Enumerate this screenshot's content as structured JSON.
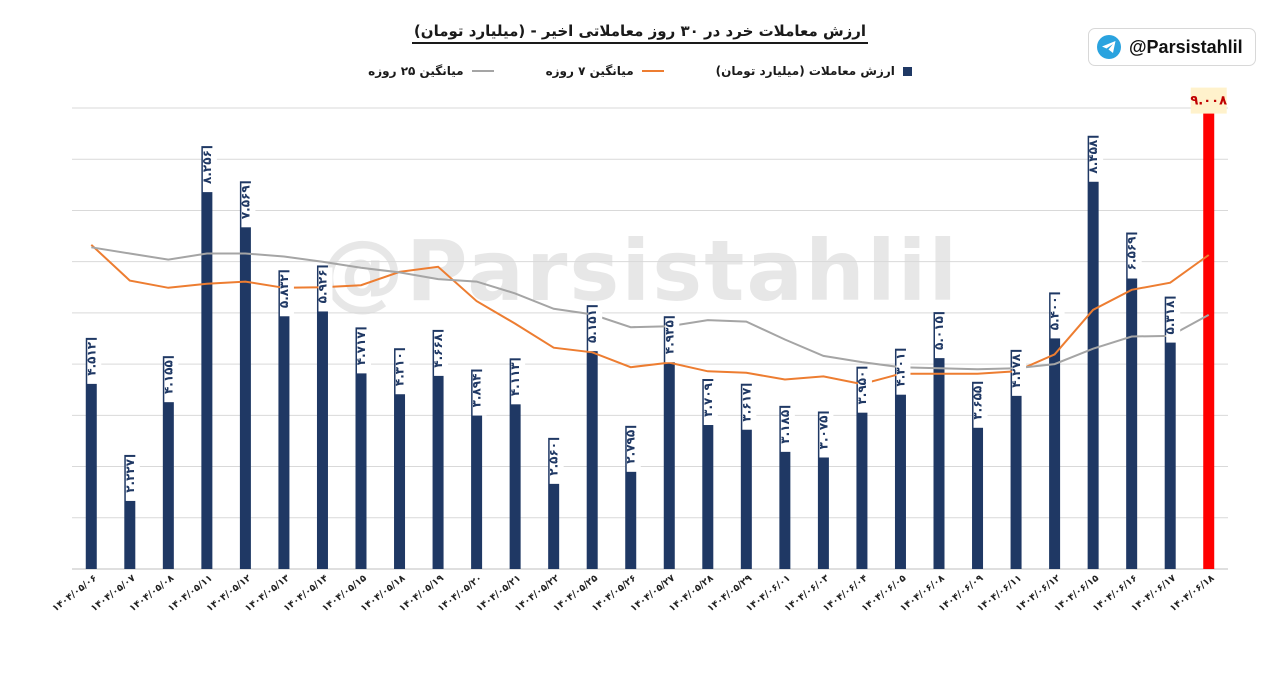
{
  "title": "ارزش معاملات خرد در ۳۰ روز معاملاتی اخیر - (میلیارد تومان)",
  "badge": {
    "handle": "@Parsistahlil",
    "icon": "telegram-icon"
  },
  "watermark": "@Parsistahlil",
  "colors": {
    "bar": "#1f3864",
    "highlight": "#ff0000",
    "ma7": "#ed7d31",
    "ma25": "#a5a5a5",
    "grid": "#d9d9d9"
  },
  "chart_data": {
    "type": "bar",
    "title": "ارزش معاملات خرد در ۳۰ روز معاملاتی اخیر - (میلیارد تومان)",
    "xlabel": "",
    "ylabel": "",
    "ylim": [
      0,
      9
    ],
    "grid": true,
    "legend_position": "top",
    "categories": [
      "۱۴۰۴/۰۵/۰۶",
      "۱۴۰۴/۰۵/۰۷",
      "۱۴۰۴/۰۵/۰۸",
      "۱۴۰۴/۰۵/۱۱",
      "۱۴۰۴/۰۵/۱۲",
      "۱۴۰۴/۰۵/۱۳",
      "۱۴۰۴/۰۵/۱۴",
      "۱۴۰۴/۰۵/۱۵",
      "۱۴۰۴/۰۵/۱۸",
      "۱۴۰۴/۰۵/۱۹",
      "۱۴۰۴/۰۵/۲۰",
      "۱۴۰۴/۰۵/۲۱",
      "۱۴۰۴/۰۵/۲۲",
      "۱۴۰۴/۰۵/۲۵",
      "۱۴۰۴/۰۵/۲۶",
      "۱۴۰۴/۰۵/۲۷",
      "۱۴۰۴/۰۵/۲۸",
      "۱۴۰۴/۰۵/۲۹",
      "۱۴۰۴/۰۶/۰۱",
      "۱۴۰۴/۰۶/۰۳",
      "۱۴۰۴/۰۶/۰۴",
      "۱۴۰۴/۰۶/۰۵",
      "۱۴۰۴/۰۶/۰۸",
      "۱۴۰۴/۰۶/۰۹",
      "۱۴۰۴/۰۶/۱۱",
      "۱۴۰۴/۰۶/۱۲",
      "۱۴۰۴/۰۶/۱۵",
      "۱۴۰۴/۰۶/۱۶",
      "۱۴۰۴/۰۶/۱۷",
      "۱۴۰۴/۰۶/۱۸"
    ],
    "value_labels": [
      "۴.۵۱۲",
      "۲.۲۲۷",
      "۴.۱۵۵",
      "۸.۲۵۶",
      "۷.۵۶۹",
      "۵.۸۳۲",
      "۵.۹۲۶",
      "۴.۷۱۷",
      "۴.۳۱۰",
      "۴.۶۶۸",
      "۳.۸۹۴",
      "۴.۱۱۳",
      "۲.۵۶۰",
      "۵.۱۵۱",
      "۲.۷۹۵",
      "۴.۹۳۵",
      "۳.۷۰۹",
      "۳.۶۱۷",
      "۳.۱۸۵",
      "۳.۰۷۵",
      "۳.۹۵۰",
      "۴.۳۰۱",
      "۵.۰۱۵",
      "۳.۶۵۵",
      "۴.۲۷۸",
      "۵.۴۰۰",
      "۸.۴۵۸",
      "۶.۵۶۹",
      "۵.۳۱۸",
      "۹.۰۰۸"
    ],
    "highlight_index": 29,
    "series": [
      {
        "name": "ارزش معاملات (میلیارد تومان)",
        "type": "bar",
        "values": [
          4.512,
          2.227,
          4.155,
          8.256,
          7.569,
          5.832,
          5.926,
          4.717,
          4.31,
          4.668,
          3.894,
          4.113,
          2.56,
          5.151,
          2.795,
          4.935,
          3.709,
          3.617,
          3.185,
          3.075,
          3.95,
          4.301,
          5.015,
          3.655,
          4.278,
          5.4,
          8.458,
          6.569,
          5.318,
          9.008
        ]
      },
      {
        "name": "میانگین ۷ روزه",
        "type": "line",
        "values": [
          6.33,
          5.63,
          5.49,
          5.57,
          5.61,
          5.49,
          5.5,
          5.54,
          5.8,
          5.9,
          5.23,
          4.79,
          4.32,
          4.23,
          3.94,
          4.03,
          3.86,
          3.83,
          3.7,
          3.76,
          3.61,
          3.81,
          3.81,
          3.81,
          3.86,
          4.19,
          5.06,
          5.45,
          5.59,
          6.13
        ]
      },
      {
        "name": "میانگین ۲۵ روزه",
        "type": "line",
        "values": [
          6.28,
          6.16,
          6.04,
          6.16,
          6.16,
          6.1,
          6.0,
          5.88,
          5.79,
          5.66,
          5.61,
          5.38,
          5.08,
          4.97,
          4.72,
          4.74,
          4.86,
          4.83,
          4.48,
          4.16,
          4.04,
          3.94,
          3.92,
          3.9,
          3.92,
          4.0,
          4.3,
          4.54,
          4.55,
          4.96
        ]
      }
    ]
  }
}
